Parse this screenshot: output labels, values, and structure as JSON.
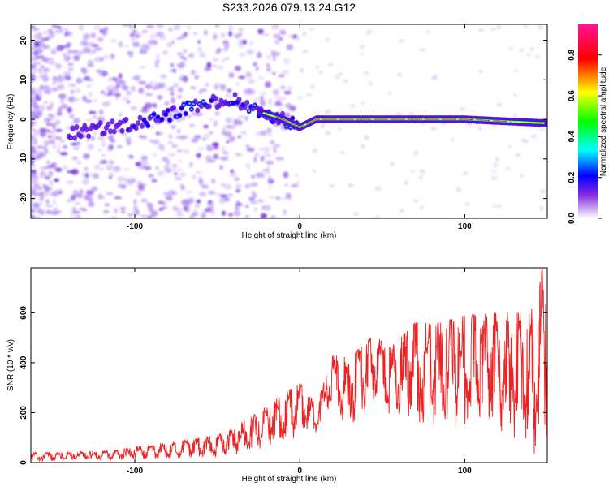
{
  "chart_data": [
    {
      "type": "heatmap",
      "title": "S233.2026.079.13.24.G12",
      "xlabel": "Height of straight line (km)",
      "ylabel": "Frequency (Hz)",
      "xlim": [
        -163,
        150
      ],
      "ylim": [
        -25,
        24
      ],
      "xticks": [
        -100,
        0,
        100
      ],
      "yticks": [
        -20,
        -10,
        0,
        10,
        20
      ],
      "colorbar": {
        "label": "Normalized spectral amplitude",
        "range": [
          0,
          0.95
        ],
        "ticks": [
          0.0,
          0.2,
          0.4,
          0.6,
          0.8
        ],
        "tick_labels": [
          "0.0",
          "0.2",
          "0.4",
          "0.6",
          "0.8"
        ],
        "stops": [
          "#ffffff",
          "#8a2be2",
          "#0000ff",
          "#00ffff",
          "#00ff00",
          "#ffff00",
          "#ff0000",
          "#ff1493"
        ]
      },
      "ridge": {
        "description_points": [
          {
            "x": -163,
            "y": -5
          },
          {
            "x": -130,
            "y": -3
          },
          {
            "x": -100,
            "y": -1
          },
          {
            "x": -80,
            "y": 1
          },
          {
            "x": -60,
            "y": 4
          },
          {
            "x": -40,
            "y": 5
          },
          {
            "x": -25,
            "y": 2
          },
          {
            "x": -10,
            "y": 0
          },
          {
            "x": 0,
            "y": -2
          },
          {
            "x": 10,
            "y": 0
          },
          {
            "x": 100,
            "y": 0
          },
          {
            "x": 150,
            "y": -1
          }
        ]
      }
    },
    {
      "type": "line",
      "xlabel": "Height of straight line (km)",
      "ylabel": "SNR (10 * v/v)",
      "xlim": [
        -163,
        150
      ],
      "ylim": [
        0,
        780
      ],
      "xticks": [
        -100,
        0,
        100
      ],
      "yticks": [
        0,
        200,
        400,
        600
      ],
      "color": "#ee2222",
      "envelope": [
        {
          "x": -163,
          "lo": 5,
          "hi": 40
        },
        {
          "x": -120,
          "lo": 10,
          "hi": 45
        },
        {
          "x": -80,
          "lo": 15,
          "hi": 80
        },
        {
          "x": -50,
          "lo": 20,
          "hi": 110
        },
        {
          "x": -30,
          "lo": 40,
          "hi": 180
        },
        {
          "x": -15,
          "lo": 60,
          "hi": 250
        },
        {
          "x": 0,
          "lo": 100,
          "hi": 320
        },
        {
          "x": 10,
          "lo": 110,
          "hi": 230
        },
        {
          "x": 20,
          "lo": 220,
          "hi": 430
        },
        {
          "x": 30,
          "lo": 120,
          "hi": 420
        },
        {
          "x": 45,
          "lo": 230,
          "hi": 510
        },
        {
          "x": 55,
          "lo": 180,
          "hi": 460
        },
        {
          "x": 70,
          "lo": 160,
          "hi": 560
        },
        {
          "x": 85,
          "lo": 150,
          "hi": 560
        },
        {
          "x": 100,
          "lo": 130,
          "hi": 590
        },
        {
          "x": 120,
          "lo": 110,
          "hi": 600
        },
        {
          "x": 140,
          "lo": 40,
          "hi": 600
        },
        {
          "x": 147,
          "lo": 10,
          "hi": 780
        },
        {
          "x": 150,
          "lo": 60,
          "hi": 620
        }
      ]
    }
  ]
}
